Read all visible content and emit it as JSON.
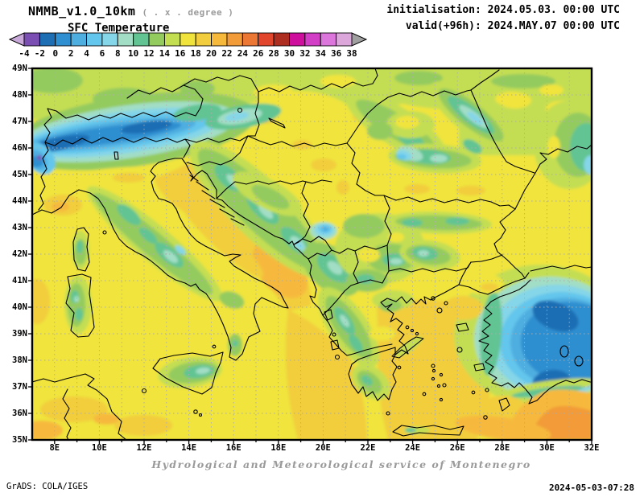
{
  "header": {
    "title": "NMMB_v1.0_10km",
    "title_note": "( . x . degree )",
    "subtitle": "SFC Temperature",
    "init_line": "initialisation: 2024.05.03. 00:00 UTC",
    "valid_line": "valid(+96h): 2024.MAY.07 00:00 UTC"
  },
  "colorbar": {
    "tick_labels": [
      "-4",
      "-2",
      "0",
      "2",
      "4",
      "6",
      "8",
      "10",
      "12",
      "14",
      "16",
      "18",
      "20",
      "22",
      "24",
      "26",
      "28",
      "30",
      "32",
      "34",
      "36",
      "38"
    ],
    "segment_colors": [
      "#7B4EB3",
      "#1E6EB4",
      "#2F8FD0",
      "#4FAEE0",
      "#63C6EC",
      "#85D6E8",
      "#A2DEC6",
      "#62C493",
      "#94CB5F",
      "#C4DE52",
      "#F0E43C",
      "#F2CE3E",
      "#F6B93C",
      "#F29B39",
      "#EC7634",
      "#E1452C",
      "#AD2E21",
      "#CE0F9E",
      "#D23FC6",
      "#DC76DC",
      "#DCA8DC"
    ],
    "left_arrow_color": "#C7A8D8",
    "right_arrow_color": "#A0A0A0"
  },
  "map": {
    "lat_labels": [
      "49N",
      "48N",
      "47N",
      "46N",
      "45N",
      "44N",
      "43N",
      "42N",
      "41N",
      "40N",
      "39N",
      "38N",
      "37N",
      "36N",
      "35N"
    ],
    "lon_labels": [
      "8E",
      "10E",
      "12E",
      "14E",
      "16E",
      "18E",
      "20E",
      "22E",
      "24E",
      "26E",
      "28E",
      "30E",
      "32E"
    ]
  },
  "footer": {
    "credit": "Hydrological and Meteorological service of Montenegro",
    "grads": "GrADS: COLA/IGES",
    "timestamp": "2024-05-03-07:28"
  }
}
